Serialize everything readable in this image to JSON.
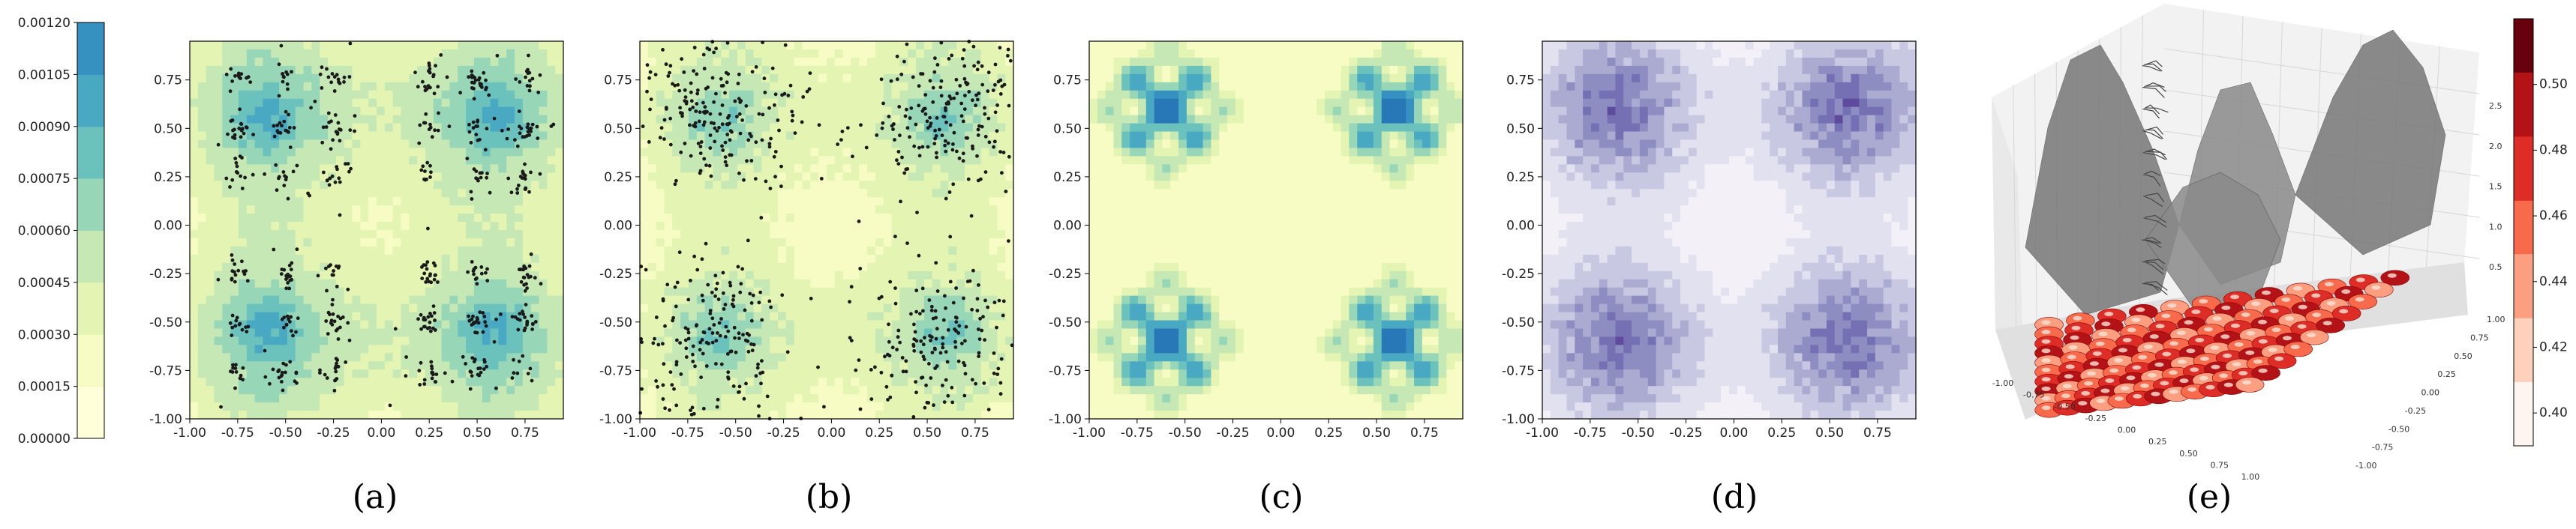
{
  "chart_data": {
    "type": "heatmap",
    "colors": {
      "ygb": [
        "#ffffd9",
        "#f7fcc4",
        "#e4f4b2",
        "#c6e8b4",
        "#98d6b8",
        "#6bc2bd",
        "#4aa9c2",
        "#3690c0",
        "#2878b8"
      ],
      "purples": [
        "#f3f1f7",
        "#e2e1ef",
        "#c9c8e2",
        "#ababd2",
        "#8e8dc2",
        "#7570b3",
        "#5e4b9e"
      ],
      "reds": [
        "#fff5f0",
        "#fdd1bc",
        "#fc9e80",
        "#f76a4b",
        "#de2d26",
        "#b31316",
        "#67000d"
      ],
      "surface_gray": "#7a7a7a",
      "scatter_dot": "#1a1a1a"
    },
    "shared_colorbar": {
      "ticks": [
        "0.00000",
        "0.00015",
        "0.00030",
        "0.00045",
        "0.00060",
        "0.00075",
        "0.00090",
        "0.00105",
        "0.00120"
      ],
      "range": [
        0,
        0.0012
      ]
    },
    "panels": [
      {
        "id": "a",
        "caption": "(a)",
        "type": "contour+scatter",
        "xlim": [
          -1.0,
          0.95
        ],
        "ylim": [
          -1.0,
          0.95
        ],
        "xticks": [
          "-1.00",
          "-0.75",
          "-0.50",
          "-0.25",
          "0.00",
          "0.25",
          "0.50",
          "0.75"
        ],
        "yticks": [
          "-1.00",
          "-0.75",
          "-0.50",
          "-0.25",
          "0.00",
          "0.25",
          "0.50",
          "0.75"
        ],
        "scatter": "clustered",
        "colormap": "ygb"
      },
      {
        "id": "b",
        "caption": "(b)",
        "type": "contour+scatter",
        "xlim": [
          -1.0,
          0.95
        ],
        "ylim": [
          -1.0,
          0.95
        ],
        "xticks": [
          "-1.00",
          "-0.75",
          "-0.50",
          "-0.25",
          "0.00",
          "0.25",
          "0.50",
          "0.75"
        ],
        "yticks": [
          "-1.00",
          "-0.75",
          "-0.50",
          "-0.25",
          "0.00",
          "0.25",
          "0.50",
          "0.75"
        ],
        "scatter": "diffuse",
        "colormap": "ygb"
      },
      {
        "id": "c",
        "caption": "(c)",
        "type": "contour",
        "xlim": [
          -1.0,
          0.95
        ],
        "ylim": [
          -1.0,
          0.95
        ],
        "xticks": [
          "-1.00",
          "-0.75",
          "-0.50",
          "-0.25",
          "0.00",
          "0.25",
          "0.50",
          "0.75"
        ],
        "yticks": [
          "-1.00",
          "-0.75",
          "-0.50",
          "-0.25",
          "0.00",
          "0.25",
          "0.50",
          "0.75"
        ],
        "colormap": "ygb"
      },
      {
        "id": "d",
        "caption": "(d)",
        "type": "contour",
        "xlim": [
          -1.0,
          0.95
        ],
        "ylim": [
          -1.0,
          0.95
        ],
        "xticks": [
          "-1.00",
          "-0.75",
          "-0.50",
          "-0.25",
          "0.00",
          "0.25",
          "0.50",
          "0.75"
        ],
        "yticks": [
          "-1.00",
          "-0.75",
          "-0.50",
          "-0.25",
          "0.00",
          "0.25",
          "0.50",
          "0.75"
        ],
        "colormap": "purples"
      },
      {
        "id": "e",
        "caption": "(e)",
        "type": "surface3d",
        "xticks": [
          "-1.00",
          "-0.75",
          "-0.50",
          "-0.25",
          "0.00",
          "0.25",
          "0.50",
          "0.75",
          "1.00"
        ],
        "yticks": [
          "-1.00",
          "-0.75",
          "-0.50",
          "-0.25",
          "0.00",
          "0.25",
          "0.50",
          "0.75",
          "1.00"
        ],
        "zticks": [
          "0.5",
          "1.0",
          "1.5",
          "2.0",
          "2.5"
        ],
        "colorbar_ticks": [
          "0.40",
          "0.42",
          "0.44",
          "0.46",
          "0.48",
          "0.50"
        ],
        "colorbar_range": [
          0.39,
          0.52
        ],
        "colormap": "reds"
      }
    ]
  }
}
